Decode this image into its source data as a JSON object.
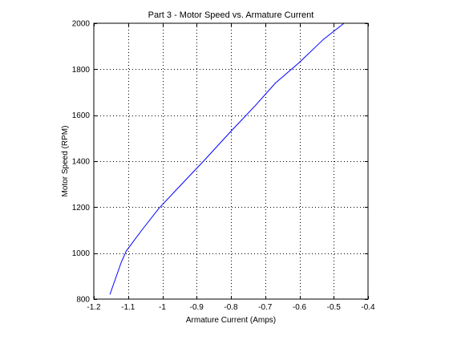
{
  "chart_data": {
    "type": "line",
    "title": "Part 3 - Motor Speed vs. Armature Current",
    "xlabel": "Armature Current (Amps)",
    "ylabel": "Motor Speed (RPM)",
    "xlim": [
      -1.2,
      -0.4
    ],
    "ylim": [
      800,
      2000
    ],
    "xticks": [
      "-1.2",
      "-1.1",
      "-1",
      "-0.9",
      "-0.8",
      "-0.7",
      "-0.6",
      "-0.5",
      "-0.4"
    ],
    "xtick_values": [
      -1.2,
      -1.1,
      -1.0,
      -0.9,
      -0.8,
      -0.7,
      -0.6,
      -0.5,
      -0.4
    ],
    "yticks": [
      "800",
      "1000",
      "1200",
      "1400",
      "1600",
      "1800",
      "2000"
    ],
    "ytick_values": [
      800,
      1000,
      1200,
      1400,
      1600,
      1800,
      2000
    ],
    "grid": true,
    "grid_style": "dotted",
    "line_color": "#0000ff",
    "series": [
      {
        "x": [
          -1.153,
          -1.12,
          -1.105,
          -1.06,
          -1.01,
          -0.95,
          -0.88,
          -0.8,
          -0.73,
          -0.67,
          -0.6,
          -0.53,
          -0.47
        ],
        "y": [
          820,
          960,
          1010,
          1100,
          1195,
          1290,
          1400,
          1530,
          1640,
          1740,
          1830,
          1930,
          2000
        ]
      }
    ]
  }
}
